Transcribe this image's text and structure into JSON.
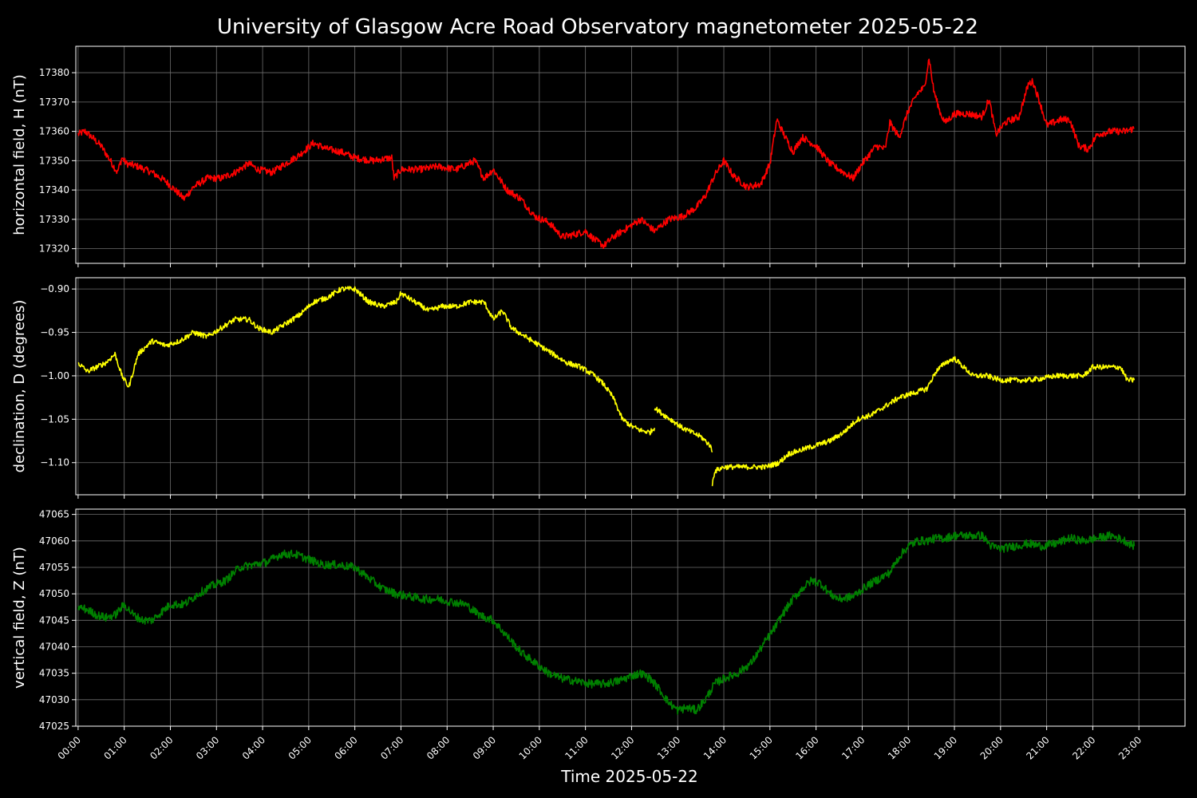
{
  "title": "University of Glasgow Acre Road Observatory magnetometer 2025-05-22",
  "xlabel": "Time 2025-05-22",
  "chart_data": [
    {
      "type": "line",
      "name": "H",
      "ylabel": "horizontal field, H (nT)",
      "color": "#ff0000",
      "xlim": [
        0,
        24
      ],
      "ylim": [
        17315,
        17389
      ],
      "yticks": [
        "17320",
        "17330",
        "17340",
        "17350",
        "17360",
        "17370",
        "17380"
      ],
      "grid": true,
      "x": [
        0,
        0.15,
        0.3,
        0.5,
        0.7,
        0.85,
        0.95,
        1.05,
        1.3,
        1.6,
        1.9,
        2.1,
        2.3,
        2.5,
        2.8,
        3.1,
        3.4,
        3.7,
        3.9,
        4.2,
        4.5,
        4.8,
        5.1,
        5.4,
        5.7,
        6.0,
        6.4,
        6.8,
        6.85,
        7.0,
        7.4,
        7.8,
        8.2,
        8.6,
        8.8,
        9.0,
        9.3,
        9.6,
        9.9,
        10.2,
        10.5,
        10.8,
        11.0,
        11.2,
        11.4,
        11.6,
        11.9,
        12.2,
        12.5,
        12.8,
        13.1,
        13.4,
        13.6,
        13.8,
        14.0,
        14.2,
        14.5,
        14.8,
        15.0,
        15.15,
        15.3,
        15.5,
        15.7,
        16.0,
        16.3,
        16.6,
        16.8,
        17.0,
        17.3,
        17.5,
        17.6,
        17.8,
        18.0,
        18.2,
        18.35,
        18.45,
        18.55,
        18.7,
        18.8,
        19.0,
        19.3,
        19.6,
        19.75,
        19.9,
        20.1,
        20.4,
        20.6,
        20.7,
        20.85,
        21.0,
        21.3,
        21.5,
        21.7,
        21.9,
        22.1,
        22.4,
        22.7,
        22.9
      ],
      "y": [
        17359,
        17360,
        17358,
        17355,
        17350,
        17346,
        17351,
        17349,
        17348,
        17346,
        17343,
        17340,
        17337,
        17341,
        17344,
        17344,
        17346,
        17349,
        17347,
        17346,
        17349,
        17352,
        17356,
        17354,
        17353,
        17351,
        17350,
        17351,
        17344,
        17347,
        17347,
        17348,
        17347,
        17350,
        17344,
        17347,
        17340,
        17337,
        17331,
        17329,
        17324,
        17325,
        17326,
        17323,
        17321,
        17324,
        17327,
        17330,
        17326,
        17330,
        17331,
        17334,
        17338,
        17345,
        17350,
        17345,
        17341,
        17342,
        17349,
        17364,
        17359,
        17353,
        17358,
        17355,
        17349,
        17346,
        17344,
        17349,
        17355,
        17354,
        17363,
        17358,
        17367,
        17373,
        17375,
        17385,
        17374,
        17366,
        17363,
        17366,
        17366,
        17365,
        17371,
        17359,
        17363,
        17365,
        17376,
        17377,
        17370,
        17362,
        17364,
        17364,
        17355,
        17354,
        17359,
        17360,
        17360,
        17361
      ],
      "noise": 1.2
    },
    {
      "type": "line",
      "name": "D",
      "ylabel": "declination, D (degrees)",
      "color": "#ffff00",
      "xlim": [
        0,
        24
      ],
      "ylim": [
        -1.137,
        -0.887
      ],
      "yticks": [
        "−0.90",
        "−0.95",
        "−1.00",
        "−1.05",
        "−1.10"
      ],
      "grid": true,
      "segments": [
        {
          "x": [
            0,
            0.2,
            0.4,
            0.6,
            0.8,
            0.95,
            1.1,
            1.3,
            1.6,
            1.9,
            2.2,
            2.5,
            2.8,
            3.1,
            3.4,
            3.7,
            3.9,
            4.2,
            4.5,
            4.8,
            5.1,
            5.4,
            5.7,
            6.0,
            6.3,
            6.6,
            6.9,
            7.0,
            7.3,
            7.6,
            7.9,
            8.2,
            8.5,
            8.8,
            9.0,
            9.2,
            9.4,
            9.7,
            10.0,
            10.3,
            10.6,
            10.9,
            11.2,
            11.4,
            11.6,
            11.8,
            12.0,
            12.2,
            12.4,
            12.5
          ],
          "y": [
            -0.985,
            -0.995,
            -0.99,
            -0.985,
            -0.975,
            -1.0,
            -1.013,
            -0.975,
            -0.96,
            -0.965,
            -0.96,
            -0.95,
            -0.955,
            -0.945,
            -0.935,
            -0.935,
            -0.945,
            -0.95,
            -0.94,
            -0.93,
            -0.915,
            -0.91,
            -0.9,
            -0.9,
            -0.915,
            -0.92,
            -0.915,
            -0.905,
            -0.915,
            -0.925,
            -0.92,
            -0.92,
            -0.915,
            -0.915,
            -0.935,
            -0.925,
            -0.945,
            -0.955,
            -0.965,
            -0.975,
            -0.985,
            -0.99,
            -1.0,
            -1.01,
            -1.025,
            -1.05,
            -1.058,
            -1.063,
            -1.065,
            -1.06
          ]
        },
        {
          "x": [
            12.5,
            12.7,
            12.9,
            13.1,
            13.3,
            13.5,
            13.7,
            13.75
          ],
          "y": [
            -1.037,
            -1.045,
            -1.052,
            -1.06,
            -1.065,
            -1.07,
            -1.08,
            -1.088
          ]
        },
        {
          "x": [
            13.75,
            13.8,
            14.0,
            14.3,
            14.6,
            14.9,
            15.2,
            15.4,
            15.7,
            16.0,
            16.3,
            16.6,
            16.9,
            17.2,
            17.5,
            17.8,
            18.1,
            18.4,
            18.6,
            18.8,
            19.0,
            19.2,
            19.4,
            19.7,
            20.0,
            20.3,
            20.6,
            20.9,
            21.2,
            21.5,
            21.8,
            22.0,
            22.3,
            22.6,
            22.75,
            22.9
          ],
          "y": [
            -1.125,
            -1.11,
            -1.105,
            -1.105,
            -1.105,
            -1.105,
            -1.1,
            -1.09,
            -1.085,
            -1.08,
            -1.075,
            -1.065,
            -1.05,
            -1.045,
            -1.035,
            -1.025,
            -1.02,
            -1.015,
            -0.995,
            -0.985,
            -0.98,
            -0.99,
            -1.0,
            -1.0,
            -1.005,
            -1.005,
            -1.005,
            -1.003,
            -1.0,
            -1.0,
            -1.0,
            -0.99,
            -0.99,
            -0.99,
            -1.005,
            -1.005
          ]
        }
      ],
      "noise": 0.003
    },
    {
      "type": "line",
      "name": "Z",
      "ylabel": "vertical field, Z (nT)",
      "color": "#008000",
      "xlim": [
        0,
        24
      ],
      "ylim": [
        47025,
        47066
      ],
      "yticks": [
        "47025",
        "47030",
        "47035",
        "47040",
        "47045",
        "47050",
        "47055",
        "47060",
        "47065"
      ],
      "grid": true,
      "x": [
        0,
        0.2,
        0.4,
        0.6,
        0.8,
        1.0,
        1.2,
        1.4,
        1.6,
        1.8,
        2.0,
        2.3,
        2.6,
        2.9,
        3.2,
        3.5,
        3.8,
        4.1,
        4.4,
        4.7,
        5.0,
        5.3,
        5.6,
        6.0,
        6.3,
        6.6,
        6.9,
        7.2,
        7.5,
        7.8,
        8.1,
        8.4,
        8.7,
        9.0,
        9.3,
        9.6,
        9.9,
        10.2,
        10.5,
        10.8,
        11.1,
        11.4,
        11.7,
        12.0,
        12.2,
        12.4,
        12.6,
        12.8,
        13.0,
        13.2,
        13.4,
        13.6,
        13.8,
        14.0,
        14.3,
        14.6,
        14.9,
        15.1,
        15.3,
        15.5,
        15.7,
        15.9,
        16.1,
        16.3,
        16.5,
        16.8,
        17.1,
        17.4,
        17.6,
        17.8,
        18.0,
        18.2,
        18.4,
        18.6,
        18.8,
        19.0,
        19.3,
        19.6,
        19.8,
        20.0,
        20.3,
        20.6,
        20.9,
        21.2,
        21.5,
        21.8,
        22.1,
        22.4,
        22.7,
        22.9
      ],
      "y": [
        47047.5,
        47047,
        47046,
        47045.5,
        47046,
        47048,
        47046,
        47045,
        47045,
        47046.5,
        47048,
        47048,
        47050,
        47051.5,
        47052.5,
        47055,
        47055.5,
        47056,
        47057.5,
        47057.5,
        47056.5,
        47055.5,
        47055.5,
        47055,
        47053,
        47051,
        47050,
        47049.5,
        47049,
        47049,
        47048.5,
        47048,
        47046,
        47045,
        47042,
        47039,
        47037,
        47035,
        47034,
        47033.5,
        47033,
        47033,
        47033.5,
        47034.5,
        47035,
        47034,
        47032,
        47029.5,
        47028,
        47028.5,
        47028,
        47030,
        47033,
        47034,
        47035,
        47037,
        47041,
        47043.5,
        47046.5,
        47049,
        47051,
        47052.5,
        47052,
        47050,
        47049,
        47049.5,
        47051.5,
        47053,
        47054,
        47057,
        47059,
        47060,
        47060,
        47060.5,
        47060.5,
        47061,
        47061,
        47061,
        47059,
        47058.5,
        47059,
        47059.5,
        47059,
        47059.5,
        47060.5,
        47060,
        47060.5,
        47061,
        47060,
        47059
      ],
      "noise": 0.8
    }
  ],
  "xticks": [
    "00:00",
    "01:00",
    "02:00",
    "03:00",
    "04:00",
    "05:00",
    "06:00",
    "07:00",
    "08:00",
    "09:00",
    "10:00",
    "11:00",
    "12:00",
    "13:00",
    "14:00",
    "15:00",
    "16:00",
    "17:00",
    "18:00",
    "19:00",
    "20:00",
    "21:00",
    "22:00",
    "23:00"
  ]
}
